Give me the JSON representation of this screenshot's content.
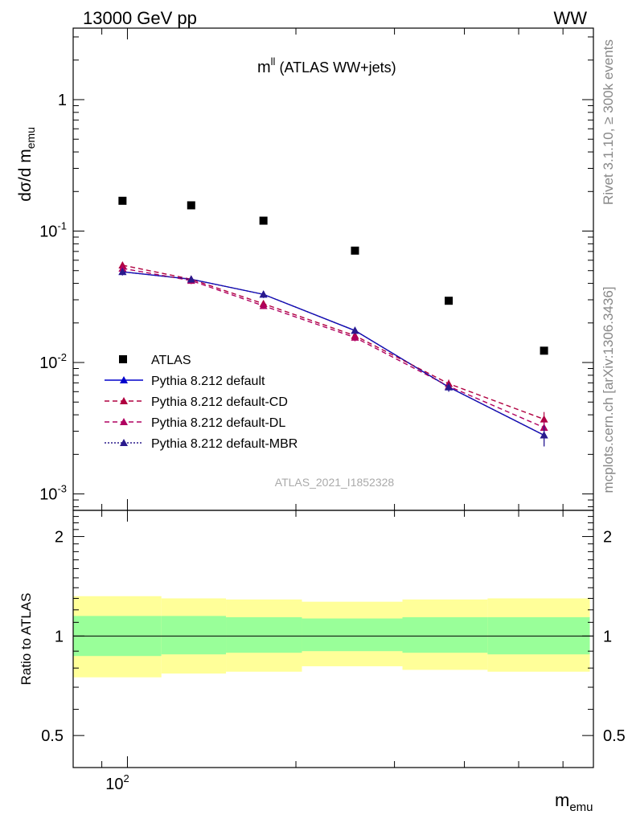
{
  "header": {
    "left": "13000 GeV pp",
    "right": "WW"
  },
  "side": {
    "rivet": "Rivet 3.1.10, ≥ 300k events",
    "mcplots": "mcplots.cern.ch [arXiv:1306.3436]"
  },
  "chart_data": {
    "type": "scatter",
    "title": "m^ll (ATLAS WW+jets)",
    "title_main": "m",
    "title_sup": "ll",
    "title_rest": " (ATLAS WW+jets)",
    "watermark": "ATLAS_2021_I1852328",
    "xlabel": "m_emu",
    "xlabel_main": "m",
    "xlabel_sub": "emu",
    "ylabel": "dσ/d m_emu",
    "ylabel_main": "dσ/d m",
    "ylabel_sub": "emu",
    "ratio_ylabel": "Ratio to ATLAS",
    "x_scale": "log",
    "y_scale": "log",
    "xlim": [
      80,
      680
    ],
    "ylim": [
      0.00075,
      3.5
    ],
    "ratio_ylim": [
      0.4,
      2.4
    ],
    "x_tick_labels": [
      "10²"
    ],
    "x_tick_label_base": "10",
    "x_tick_label_exp": "2",
    "y_tick_labels": [
      "1",
      "10⁻¹",
      "10⁻²",
      "10⁻³"
    ],
    "ratio_tick_labels": [
      "0.5",
      "1",
      "2"
    ],
    "legend_position": "bottom-left",
    "colors": {
      "data": "#000000",
      "default": "#0000cc",
      "cd": "#b00040",
      "dl": "#b00060",
      "mbr": "#2a1a8c",
      "band_inner": "#99ff99",
      "band_outer": "#ffff99"
    },
    "bins": [
      {
        "x": 98,
        "lo": 80,
        "hi": 115
      },
      {
        "x": 130,
        "lo": 115,
        "hi": 150
      },
      {
        "x": 175,
        "lo": 150,
        "hi": 205
      },
      {
        "x": 255,
        "lo": 205,
        "hi": 310
      },
      {
        "x": 375,
        "lo": 310,
        "hi": 440
      },
      {
        "x": 555,
        "lo": 440,
        "hi": 670
      }
    ],
    "series": [
      {
        "name": "ATLAS",
        "key": "data",
        "marker": "square",
        "line": "none",
        "values": [
          0.17,
          0.157,
          0.12,
          0.071,
          0.0295,
          0.0123
        ]
      },
      {
        "name": "Pythia 8.212 default",
        "key": "default",
        "marker": "triangle",
        "line": "solid",
        "values": [
          0.049,
          0.043,
          0.033,
          0.0175,
          0.0065,
          0.0028
        ],
        "errors": [
          0.003,
          0.0025,
          0.002,
          0.001,
          0.0005,
          0.0005
        ]
      },
      {
        "name": "Pythia 8.212 default-CD",
        "key": "cd",
        "marker": "triangle",
        "line": "dashed",
        "values": [
          0.055,
          0.043,
          0.028,
          0.016,
          0.0069,
          0.0037
        ],
        "errors": [
          0.003,
          0.0025,
          0.0015,
          0.001,
          0.0005,
          0.0005
        ]
      },
      {
        "name": "Pythia 8.212 default-DL",
        "key": "dl",
        "marker": "triangle",
        "line": "dashed",
        "values": [
          0.052,
          0.042,
          0.027,
          0.0155,
          0.0066,
          0.0032
        ],
        "errors": [
          0.003,
          0.0025,
          0.0015,
          0.001,
          0.0005,
          0.0005
        ]
      },
      {
        "name": "Pythia 8.212 default-MBR",
        "key": "mbr",
        "marker": "triangle",
        "line": "dotted",
        "values": [
          0.049,
          0.043,
          0.033,
          0.0175,
          0.0065,
          0.0028
        ],
        "errors": [
          0.003,
          0.0025,
          0.002,
          0.001,
          0.0005,
          0.0005
        ]
      }
    ],
    "ratio_band": {
      "inner": [
        [
          0.87,
          1.15
        ],
        [
          0.88,
          1.15
        ],
        [
          0.89,
          1.14
        ],
        [
          0.9,
          1.13
        ],
        [
          0.89,
          1.14
        ],
        [
          0.88,
          1.14
        ]
      ],
      "outer": [
        [
          0.75,
          1.32
        ],
        [
          0.77,
          1.3
        ],
        [
          0.78,
          1.29
        ],
        [
          0.81,
          1.27
        ],
        [
          0.79,
          1.29
        ],
        [
          0.78,
          1.3
        ]
      ]
    }
  }
}
